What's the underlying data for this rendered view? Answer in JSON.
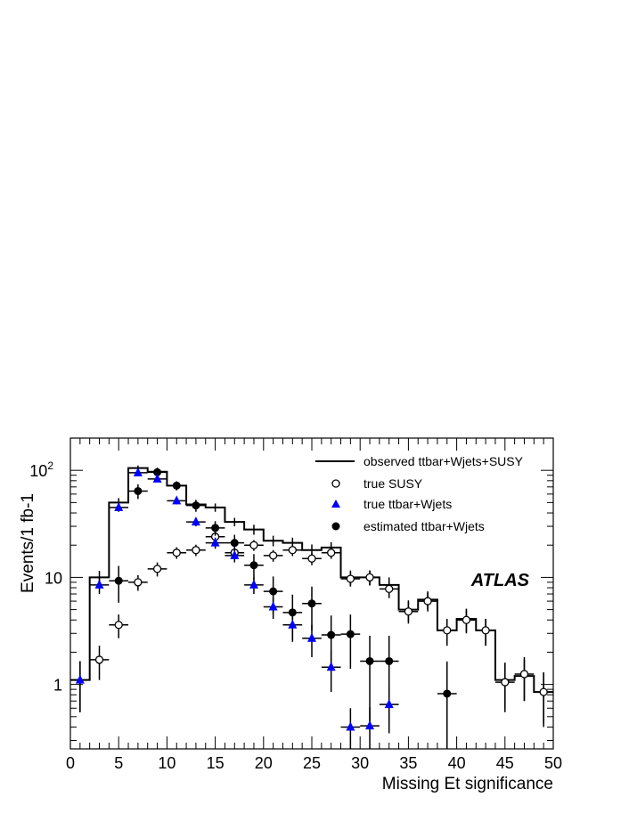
{
  "chart_data": {
    "type": "scatter",
    "xlabel": "Missing Et significance",
    "ylabel": "Events/1 fb-1",
    "log_y": true,
    "xlim": [
      0,
      50
    ],
    "ylim": [
      0.25,
      200
    ],
    "x_ticks": [
      0,
      5,
      10,
      15,
      20,
      25,
      30,
      35,
      40,
      45,
      50
    ],
    "y_ticks": [
      {
        "value": 1,
        "label": "1"
      },
      {
        "value": 10,
        "label": "10"
      },
      {
        "value": 100,
        "label": "10",
        "exponent": "2"
      }
    ],
    "watermark": "ATLAS",
    "legend_position": "top-right",
    "legend": [
      {
        "label": "observed ttbar+Wjets+SUSY",
        "marker": "line"
      },
      {
        "label": "true SUSY",
        "marker": "open-circle"
      },
      {
        "label": "true ttbar+Wjets",
        "marker": "triangle"
      },
      {
        "label": "estimated ttbar+Wjets",
        "marker": "filled-circle"
      }
    ],
    "series": [
      {
        "name": "observed ttbar+Wjets+SUSY",
        "style": "histogram",
        "color": "#000000",
        "bin_edges": [
          0,
          2,
          4,
          6,
          8,
          10,
          12,
          14,
          16,
          18,
          20,
          22,
          24,
          26,
          28,
          30,
          32,
          34,
          36,
          38,
          40,
          42,
          44,
          46,
          48,
          50
        ],
        "values": [
          1.1,
          10,
          50,
          105,
          97,
          72,
          48,
          45,
          33,
          28,
          22,
          21,
          18,
          19,
          10,
          10,
          8.5,
          5,
          6.2,
          3.2,
          4.1,
          3.2,
          1.1,
          1.2,
          0.85
        ],
        "errors": [
          0.55,
          1.5,
          5,
          6,
          6,
          5,
          4,
          4,
          3,
          3,
          2.5,
          2.5,
          2.3,
          2.3,
          1.6,
          1.6,
          1.5,
          1.1,
          1.2,
          0.9,
          1,
          0.9,
          0.5,
          0.5,
          0.42
        ]
      },
      {
        "name": "true SUSY",
        "marker": "open-circle",
        "color": "#000000",
        "x": [
          3,
          5,
          7,
          9,
          11,
          13,
          15,
          17,
          19,
          21,
          23,
          25,
          27,
          29,
          31,
          33,
          35,
          37,
          39,
          41,
          43,
          45,
          47,
          49
        ],
        "y": [
          1.7,
          3.6,
          9,
          12,
          17,
          18,
          24,
          17,
          20,
          16,
          18,
          15,
          17,
          9.7,
          10,
          7.8,
          4.8,
          6,
          3.2,
          4,
          3.2,
          1.05,
          1.25,
          0.85
        ],
        "errors": [
          0.6,
          0.9,
          1.5,
          1.8,
          2.1,
          2.2,
          2.5,
          2.1,
          2.3,
          2,
          2.2,
          2,
          2.1,
          1.5,
          1.6,
          1.4,
          1.1,
          1.2,
          0.9,
          1,
          0.9,
          0.5,
          0.55,
          0.45
        ]
      },
      {
        "name": "true ttbar+Wjets",
        "marker": "triangle",
        "color": "#0000ff",
        "x": [
          1,
          3,
          5,
          7,
          9,
          11,
          13,
          15,
          17,
          19,
          21,
          23,
          25,
          27,
          29,
          31,
          33
        ],
        "y": [
          1.1,
          8.5,
          45,
          95,
          83,
          52,
          33,
          21,
          16,
          8.5,
          5.3,
          3.6,
          2.7,
          1.45,
          0.4,
          0.41,
          0.65
        ],
        "errors": [
          0.55,
          1.5,
          4,
          6,
          5,
          4,
          3,
          2.5,
          2.2,
          1.5,
          1.2,
          1,
          0.9,
          0.6,
          0.2,
          0.2,
          0.3
        ]
      },
      {
        "name": "estimated ttbar+Wjets",
        "marker": "filled-circle",
        "color": "#000000",
        "x": [
          5,
          7,
          9,
          11,
          13,
          15,
          17,
          19,
          21,
          23,
          25,
          27,
          29,
          31,
          33,
          39
        ],
        "y": [
          9.3,
          64,
          96,
          72,
          47,
          29,
          21,
          13,
          7.4,
          4.7,
          5.7,
          2.9,
          2.95,
          1.65,
          1.65,
          0.82
        ],
        "errors": [
          3.5,
          10,
          10,
          7,
          6,
          4.5,
          4,
          3.5,
          2.8,
          2.2,
          2.5,
          1.5,
          1.55,
          1.2,
          1.2,
          0.82
        ]
      }
    ]
  }
}
